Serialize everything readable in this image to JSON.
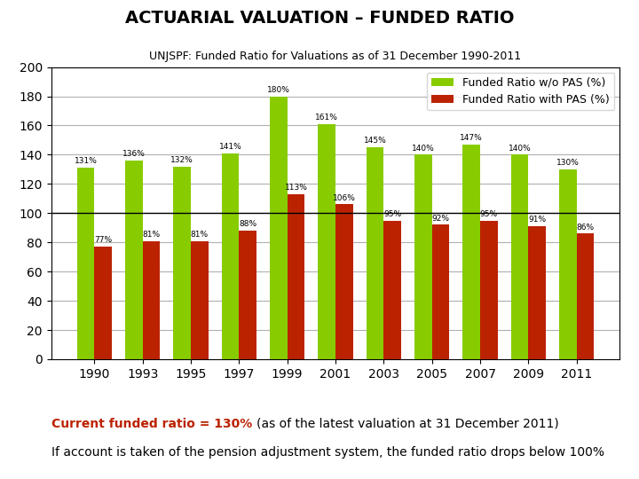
{
  "chart_data": {
    "type": "bar",
    "title": "ACTUARIAL VALUATION – FUNDED RATIO",
    "subtitle": "UNJSPF: Funded Ratio for Valuations as of 31 December 1990-2011",
    "categories": [
      "1990",
      "1993",
      "1995",
      "1997",
      "1999",
      "2001",
      "2003",
      "2005",
      "2007",
      "2009",
      "2011"
    ],
    "series": [
      {
        "name": "Funded Ratio w/o PAS (%)",
        "color": "#88cc00",
        "values": [
          131,
          136,
          132,
          141,
          180,
          161,
          145,
          140,
          147,
          140,
          130
        ],
        "value_labels": [
          "131%",
          "136%",
          "132%",
          "141%",
          "180%",
          "161%",
          "145%",
          "140%",
          "147%",
          "140%",
          "130%"
        ]
      },
      {
        "name": "Funded Ratio with PAS (%)",
        "color": "#bb2200",
        "values": [
          77,
          81,
          81,
          88,
          113,
          106,
          95,
          92,
          95,
          91,
          86
        ],
        "value_labels": [
          "77%",
          "81%",
          "81%",
          "88%",
          "113%",
          "106%",
          "95%",
          "92%",
          "95%",
          "91%",
          "86%"
        ]
      }
    ],
    "ylim": [
      0,
      200
    ],
    "yticks": [
      0,
      20,
      40,
      60,
      80,
      100,
      120,
      140,
      160,
      180,
      200
    ],
    "reference_line": 100,
    "grid": true,
    "legend": "upper right",
    "data_labels": true,
    "annotations": [
      {
        "text": "Current funded ratio = 130%",
        "color": "#bb2200"
      },
      {
        "text": "(as of the latest valuation at 31 December 2011)"
      },
      {
        "text": "If account is taken of the pension adjustment system, the funded ratio drops below 100%"
      }
    ]
  }
}
